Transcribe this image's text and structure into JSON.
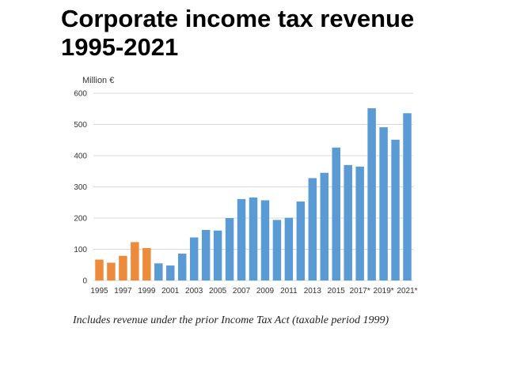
{
  "title_line1": "Corporate income tax revenue",
  "title_line2": "1995-2021",
  "footnote": "Includes revenue under the prior Income Tax Act (taxable period 1999)",
  "chart_data": {
    "type": "bar",
    "ylabel": "Million €",
    "xlabel": "",
    "ylim": [
      0,
      600
    ],
    "yticks": [
      0,
      100,
      200,
      300,
      400,
      500,
      600
    ],
    "grid": true,
    "legend": "none",
    "categories": [
      "1995",
      "1996",
      "1997",
      "1998",
      "1999",
      "2000",
      "2001",
      "2002",
      "2003",
      "2004",
      "2005",
      "2006",
      "2007",
      "2008",
      "2009",
      "2010",
      "2011",
      "2012",
      "2013",
      "2014",
      "2015",
      "2016",
      "2017*",
      "2018*",
      "2019*",
      "2020*",
      "2021*"
    ],
    "xtick_labels": [
      "1995",
      "",
      "1997",
      "",
      "1999",
      "",
      "2001",
      "",
      "2003",
      "",
      "2005",
      "",
      "2007",
      "",
      "2009",
      "",
      "2011",
      "",
      "2013",
      "",
      "2015",
      "",
      "2017*",
      "",
      "2019*",
      "",
      "2021*"
    ],
    "values": [
      67,
      57,
      79,
      123,
      104,
      55,
      48,
      86,
      138,
      162,
      160,
      200,
      261,
      266,
      257,
      194,
      201,
      253,
      328,
      345,
      426,
      370,
      365,
      552,
      491,
      451,
      536
    ],
    "bar_colors": [
      "#ED8B3D",
      "#ED8B3D",
      "#ED8B3D",
      "#ED8B3D",
      "#ED8B3D",
      "#5B9BD5",
      "#5B9BD5",
      "#5B9BD5",
      "#5B9BD5",
      "#5B9BD5",
      "#5B9BD5",
      "#5B9BD5",
      "#5B9BD5",
      "#5B9BD5",
      "#5B9BD5",
      "#5B9BD5",
      "#5B9BD5",
      "#5B9BD5",
      "#5B9BD5",
      "#5B9BD5",
      "#5B9BD5",
      "#5B9BD5",
      "#5B9BD5",
      "#5B9BD5",
      "#5B9BD5",
      "#5B9BD5",
      "#5B9BD5"
    ],
    "gridline_color": "#D9D9D9"
  }
}
